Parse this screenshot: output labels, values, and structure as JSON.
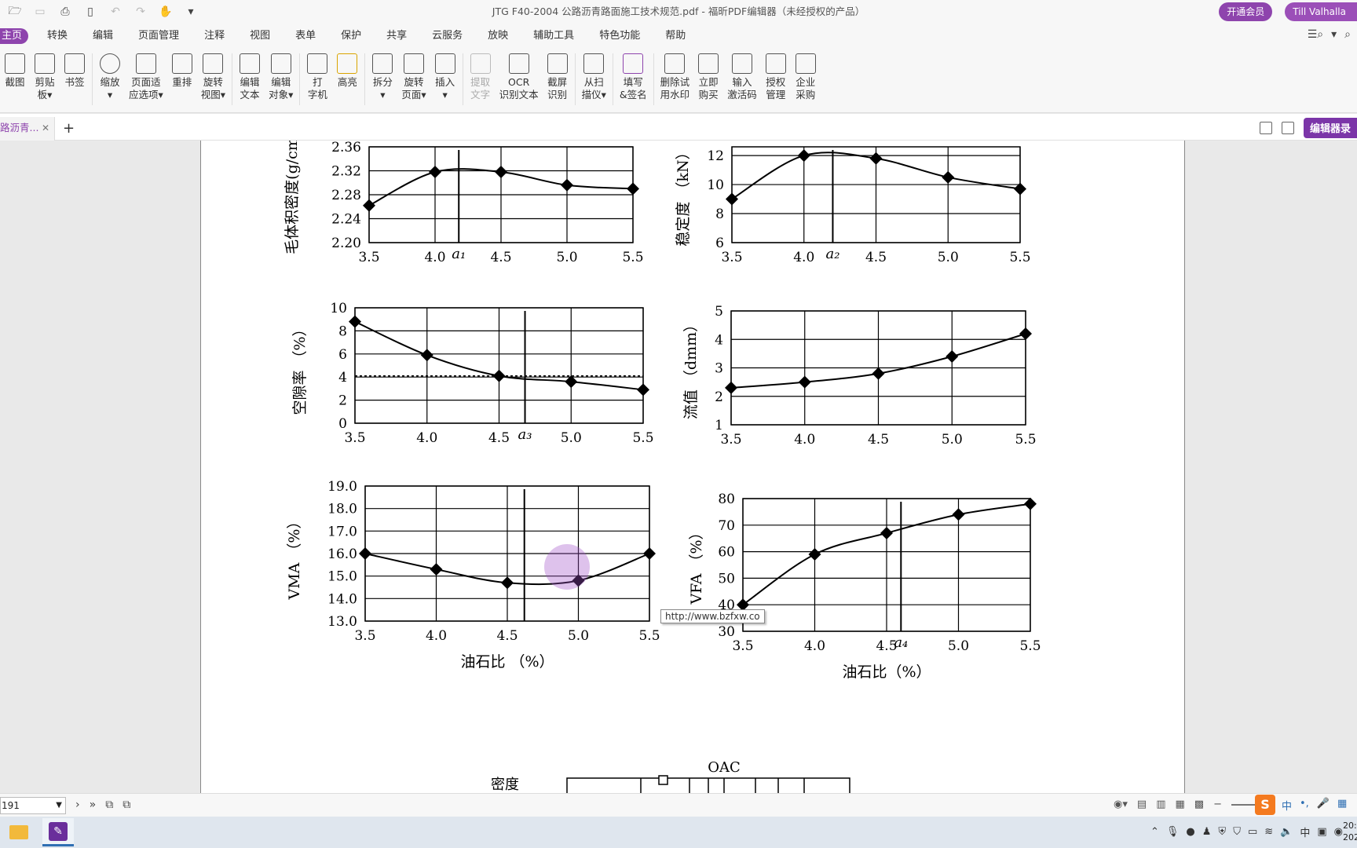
{
  "window": {
    "title": "JTG F40-2004 公路沥青路面施工技术规范.pdf - 福昕PDF编辑器（未经授权的产品）",
    "vip_button": "开通会员",
    "user_name": "Till Valhalla"
  },
  "menu": [
    "主页",
    "转换",
    "编辑",
    "页面管理",
    "注释",
    "视图",
    "表单",
    "保护",
    "共享",
    "云服务",
    "放映",
    "辅助工具",
    "特色功能",
    "帮助"
  ],
  "ribbon": [
    {
      "label": "截图",
      "icon": "screenshot-icon"
    },
    {
      "label": "剪贴\n板▾",
      "icon": "clipboard-icon"
    },
    {
      "label": "书签",
      "icon": "bookmark-icon"
    },
    {
      "label": "缩放\n▾",
      "icon": "zoom-icon"
    },
    {
      "label": "页面适\n应选项▾",
      "icon": "fit-page-icon"
    },
    {
      "label": "重排",
      "icon": "reflow-icon"
    },
    {
      "label": "旋转\n视图▾",
      "icon": "rotate-view-icon"
    },
    {
      "label": "编辑\n文本",
      "icon": "edit-text-icon"
    },
    {
      "label": "编辑\n对象▾",
      "icon": "edit-object-icon"
    },
    {
      "label": "打\n字机",
      "icon": "typewriter-icon"
    },
    {
      "label": "高亮",
      "icon": "highlight-icon"
    },
    {
      "label": "拆分\n▾",
      "icon": "split-icon"
    },
    {
      "label": "旋转\n页面▾",
      "icon": "rotate-page-icon"
    },
    {
      "label": "插入\n▾",
      "icon": "insert-icon"
    },
    {
      "label": "提取\n文字",
      "icon": "extract-text-icon",
      "disabled": true
    },
    {
      "label": "OCR\n识别文本",
      "icon": "ocr-icon"
    },
    {
      "label": "截屏\n识别",
      "icon": "screen-ocr-icon"
    },
    {
      "label": "从扫\n描仪▾",
      "icon": "scanner-icon"
    },
    {
      "label": "填写\n&签名",
      "icon": "fill-sign-icon"
    },
    {
      "label": "删除试\n用水印",
      "icon": "remove-watermark-icon"
    },
    {
      "label": "立即\n购买",
      "icon": "cart-icon"
    },
    {
      "label": "输入\n激活码",
      "icon": "activation-icon"
    },
    {
      "label": "授权\n管理",
      "icon": "license-icon"
    },
    {
      "label": "企业\n采购",
      "icon": "enterprise-icon"
    }
  ],
  "tabs": {
    "doc_tab": "路沥青...",
    "edit_badge": "编辑器录"
  },
  "document": {
    "tooltip": "http://www.bzfxw.co",
    "oac_label": "OAC",
    "density_label": "密度"
  },
  "status": {
    "page": "191",
    "zoom": ""
  },
  "taskbar": {
    "clock": "20:2\n202"
  },
  "chart_data": [
    {
      "type": "line",
      "ylabel": "毛体积密度(g/cm",
      "x": [
        3.5,
        4.0,
        4.5,
        5.0,
        5.5
      ],
      "values": [
        2.262,
        2.318,
        2.318,
        2.296,
        2.29
      ],
      "xticks": [
        "3.5",
        "4.0",
        "4.5",
        "5.0",
        "5.5"
      ],
      "yticks": [
        "2.20",
        "2.24",
        "2.28",
        "2.32",
        "2.36"
      ],
      "ylim": [
        2.2,
        2.36
      ],
      "annotation": "a₁",
      "marker_x": 4.18
    },
    {
      "type": "line",
      "ylabel": "稳定度 （kN）",
      "x": [
        3.5,
        4.0,
        4.5,
        5.0,
        5.5
      ],
      "values": [
        9.0,
        12.0,
        11.8,
        10.5,
        9.7
      ],
      "xticks": [
        "3.5",
        "4.0",
        "4.5",
        "5.0",
        "5.5"
      ],
      "yticks": [
        "6",
        "8",
        "10",
        "12"
      ],
      "ylim": [
        6,
        12.6
      ],
      "annotation": "a₂",
      "marker_x": 4.2
    },
    {
      "type": "line",
      "ylabel": "空隙率 （%）",
      "x": [
        3.5,
        4.0,
        4.5,
        5.0,
        5.5
      ],
      "values": [
        8.8,
        5.9,
        4.1,
        3.6,
        2.9
      ],
      "xticks": [
        "3.5",
        "4.0",
        "4.5",
        "5.0",
        "5.5"
      ],
      "yticks": [
        "0",
        "2",
        "4",
        "6",
        "8",
        "10"
      ],
      "ylim": [
        0,
        10
      ],
      "annotation": "a₃",
      "marker_x": 4.68
    },
    {
      "type": "line",
      "ylabel": "流值 （dmm）",
      "x": [
        3.5,
        4.0,
        4.5,
        5.0,
        5.5
      ],
      "values": [
        2.3,
        2.5,
        2.8,
        3.4,
        4.2
      ],
      "xticks": [
        "3.5",
        "4.0",
        "4.5",
        "5.0",
        "5.5"
      ],
      "yticks": [
        "1",
        "2",
        "3",
        "4",
        "5"
      ],
      "ylim": [
        1,
        5
      ]
    },
    {
      "type": "line",
      "ylabel": "VMA （%）",
      "xlabel": "油石比 （%）",
      "x": [
        3.5,
        4.0,
        4.5,
        5.0,
        5.5
      ],
      "values": [
        16.0,
        15.3,
        14.7,
        14.8,
        16.0
      ],
      "xticks": [
        "3.5",
        "4.0",
        "4.5",
        "5.0",
        "5.5"
      ],
      "yticks": [
        "13.0",
        "14.0",
        "15.0",
        "16.0",
        "17.0",
        "18.0",
        "19.0"
      ],
      "ylim": [
        13.0,
        19.0
      ],
      "marker_x": 4.62
    },
    {
      "type": "line",
      "ylabel": "VFA （%）",
      "xlabel": "油石比（%）",
      "x": [
        3.5,
        4.0,
        4.5,
        5.0,
        5.5
      ],
      "values": [
        40,
        59,
        67,
        74,
        78
      ],
      "xticks": [
        "3.5",
        "4.0",
        "4.5",
        "5.0",
        "5.5"
      ],
      "yticks": [
        "30",
        "40",
        "50",
        "60",
        "70",
        "80"
      ],
      "ylim": [
        30,
        80
      ],
      "annotation": "a₄",
      "marker_x": 4.6
    }
  ]
}
